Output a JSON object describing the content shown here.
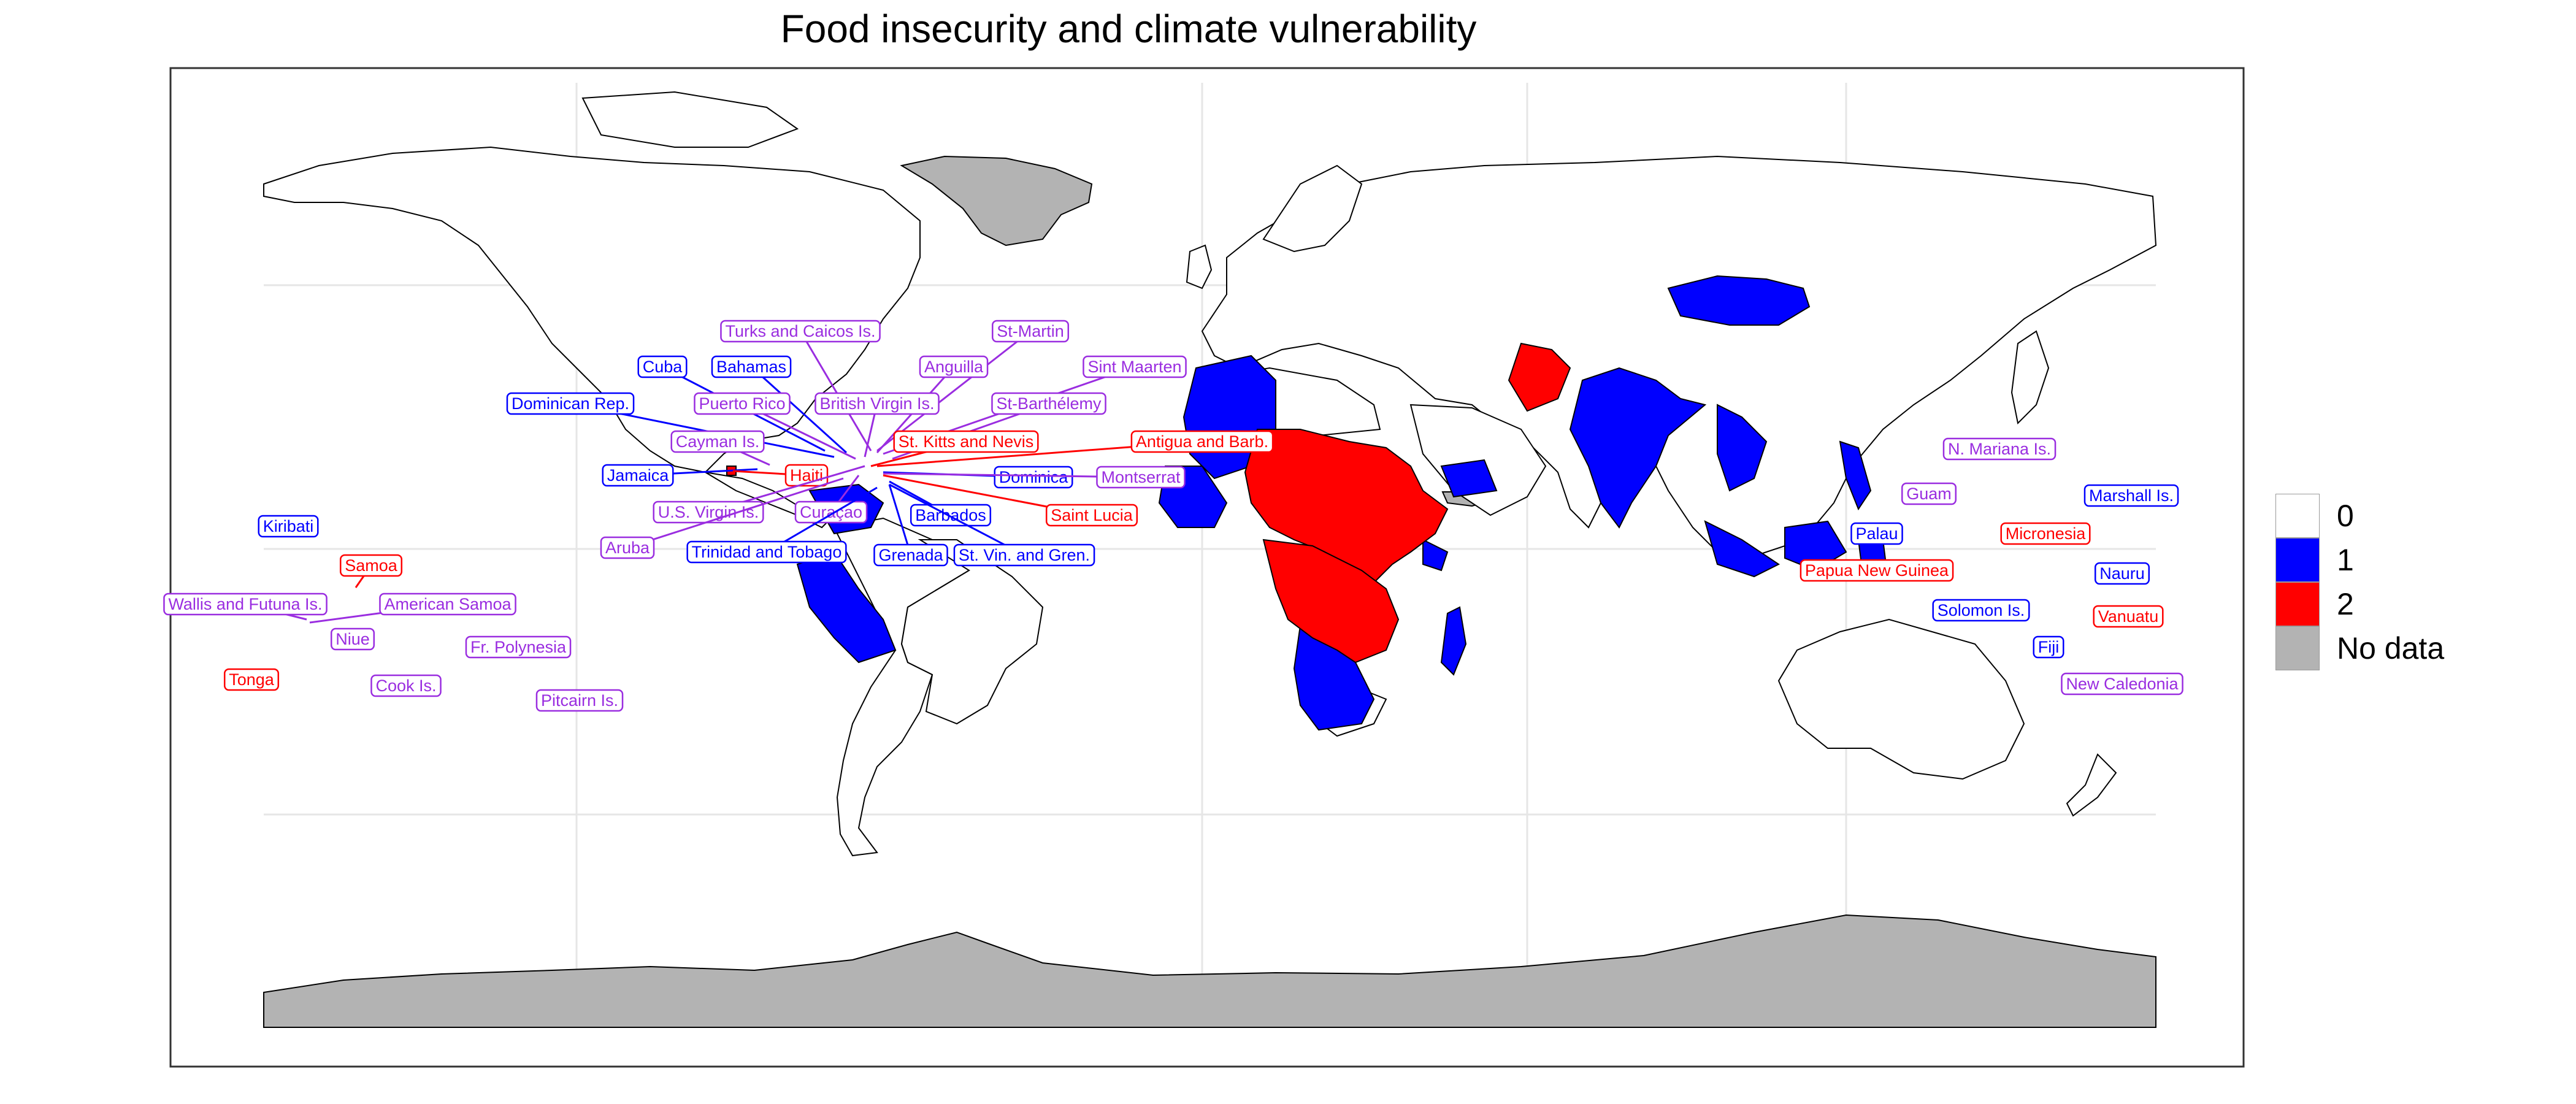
{
  "title": "Food insecurity and climate vulnerability",
  "colors": {
    "0": "#ffffff",
    "1": "#0000ff",
    "2": "#ff0000",
    "no_data": "#b3b3b3",
    "small_territory": "#9a2de0",
    "border": "#000000"
  },
  "legend": [
    {
      "key": "0",
      "label": "0"
    },
    {
      "key": "1",
      "label": "1"
    },
    {
      "key": "2",
      "label": "2"
    },
    {
      "key": "no_data",
      "label": "No data"
    }
  ],
  "labels": [
    {
      "text": "Turks and Caicos Is.",
      "class": "small_territory"
    },
    {
      "text": "St-Martin",
      "class": "small_territory"
    },
    {
      "text": "Cuba",
      "class": "1"
    },
    {
      "text": "Bahamas",
      "class": "1"
    },
    {
      "text": "Anguilla",
      "class": "small_territory"
    },
    {
      "text": "Sint Maarten",
      "class": "small_territory"
    },
    {
      "text": "Dominican Rep.",
      "class": "1"
    },
    {
      "text": "Puerto Rico",
      "class": "small_territory"
    },
    {
      "text": "British Virgin Is.",
      "class": "small_territory"
    },
    {
      "text": "St-Barthélemy",
      "class": "small_territory"
    },
    {
      "text": "Cayman Is.",
      "class": "small_territory"
    },
    {
      "text": "St. Kitts and Nevis",
      "class": "2"
    },
    {
      "text": "Antigua and Barb.",
      "class": "2"
    },
    {
      "text": "Jamaica",
      "class": "1"
    },
    {
      "text": "Haiti",
      "class": "2"
    },
    {
      "text": "Dominica",
      "class": "1"
    },
    {
      "text": "Montserrat",
      "class": "small_territory"
    },
    {
      "text": "U.S. Virgin Is.",
      "class": "small_territory"
    },
    {
      "text": "Curaçao",
      "class": "small_territory"
    },
    {
      "text": "Barbados",
      "class": "1"
    },
    {
      "text": "Saint Lucia",
      "class": "2"
    },
    {
      "text": "Aruba",
      "class": "small_territory"
    },
    {
      "text": "Trinidad and Tobago",
      "class": "1"
    },
    {
      "text": "Grenada",
      "class": "1"
    },
    {
      "text": "St. Vin. and Gren.",
      "class": "1"
    },
    {
      "text": "Kiribati",
      "class": "1"
    },
    {
      "text": "Samoa",
      "class": "2"
    },
    {
      "text": "Wallis and Futuna Is.",
      "class": "small_territory"
    },
    {
      "text": "American Samoa",
      "class": "small_territory"
    },
    {
      "text": "Niue",
      "class": "small_territory"
    },
    {
      "text": "Fr. Polynesia",
      "class": "small_territory"
    },
    {
      "text": "Tonga",
      "class": "2"
    },
    {
      "text": "Cook Is.",
      "class": "small_territory"
    },
    {
      "text": "Pitcairn Is.",
      "class": "small_territory"
    },
    {
      "text": "N. Mariana Is.",
      "class": "small_territory"
    },
    {
      "text": "Guam",
      "class": "small_territory"
    },
    {
      "text": "Marshall Is.",
      "class": "1"
    },
    {
      "text": "Micronesia",
      "class": "2"
    },
    {
      "text": "Palau",
      "class": "1"
    },
    {
      "text": "Papua New Guinea",
      "class": "2"
    },
    {
      "text": "Nauru",
      "class": "1"
    },
    {
      "text": "Solomon Is.",
      "class": "1"
    },
    {
      "text": "Vanuatu",
      "class": "2"
    },
    {
      "text": "Fiji",
      "class": "1"
    },
    {
      "text": "New Caledonia",
      "class": "small_territory"
    }
  ]
}
